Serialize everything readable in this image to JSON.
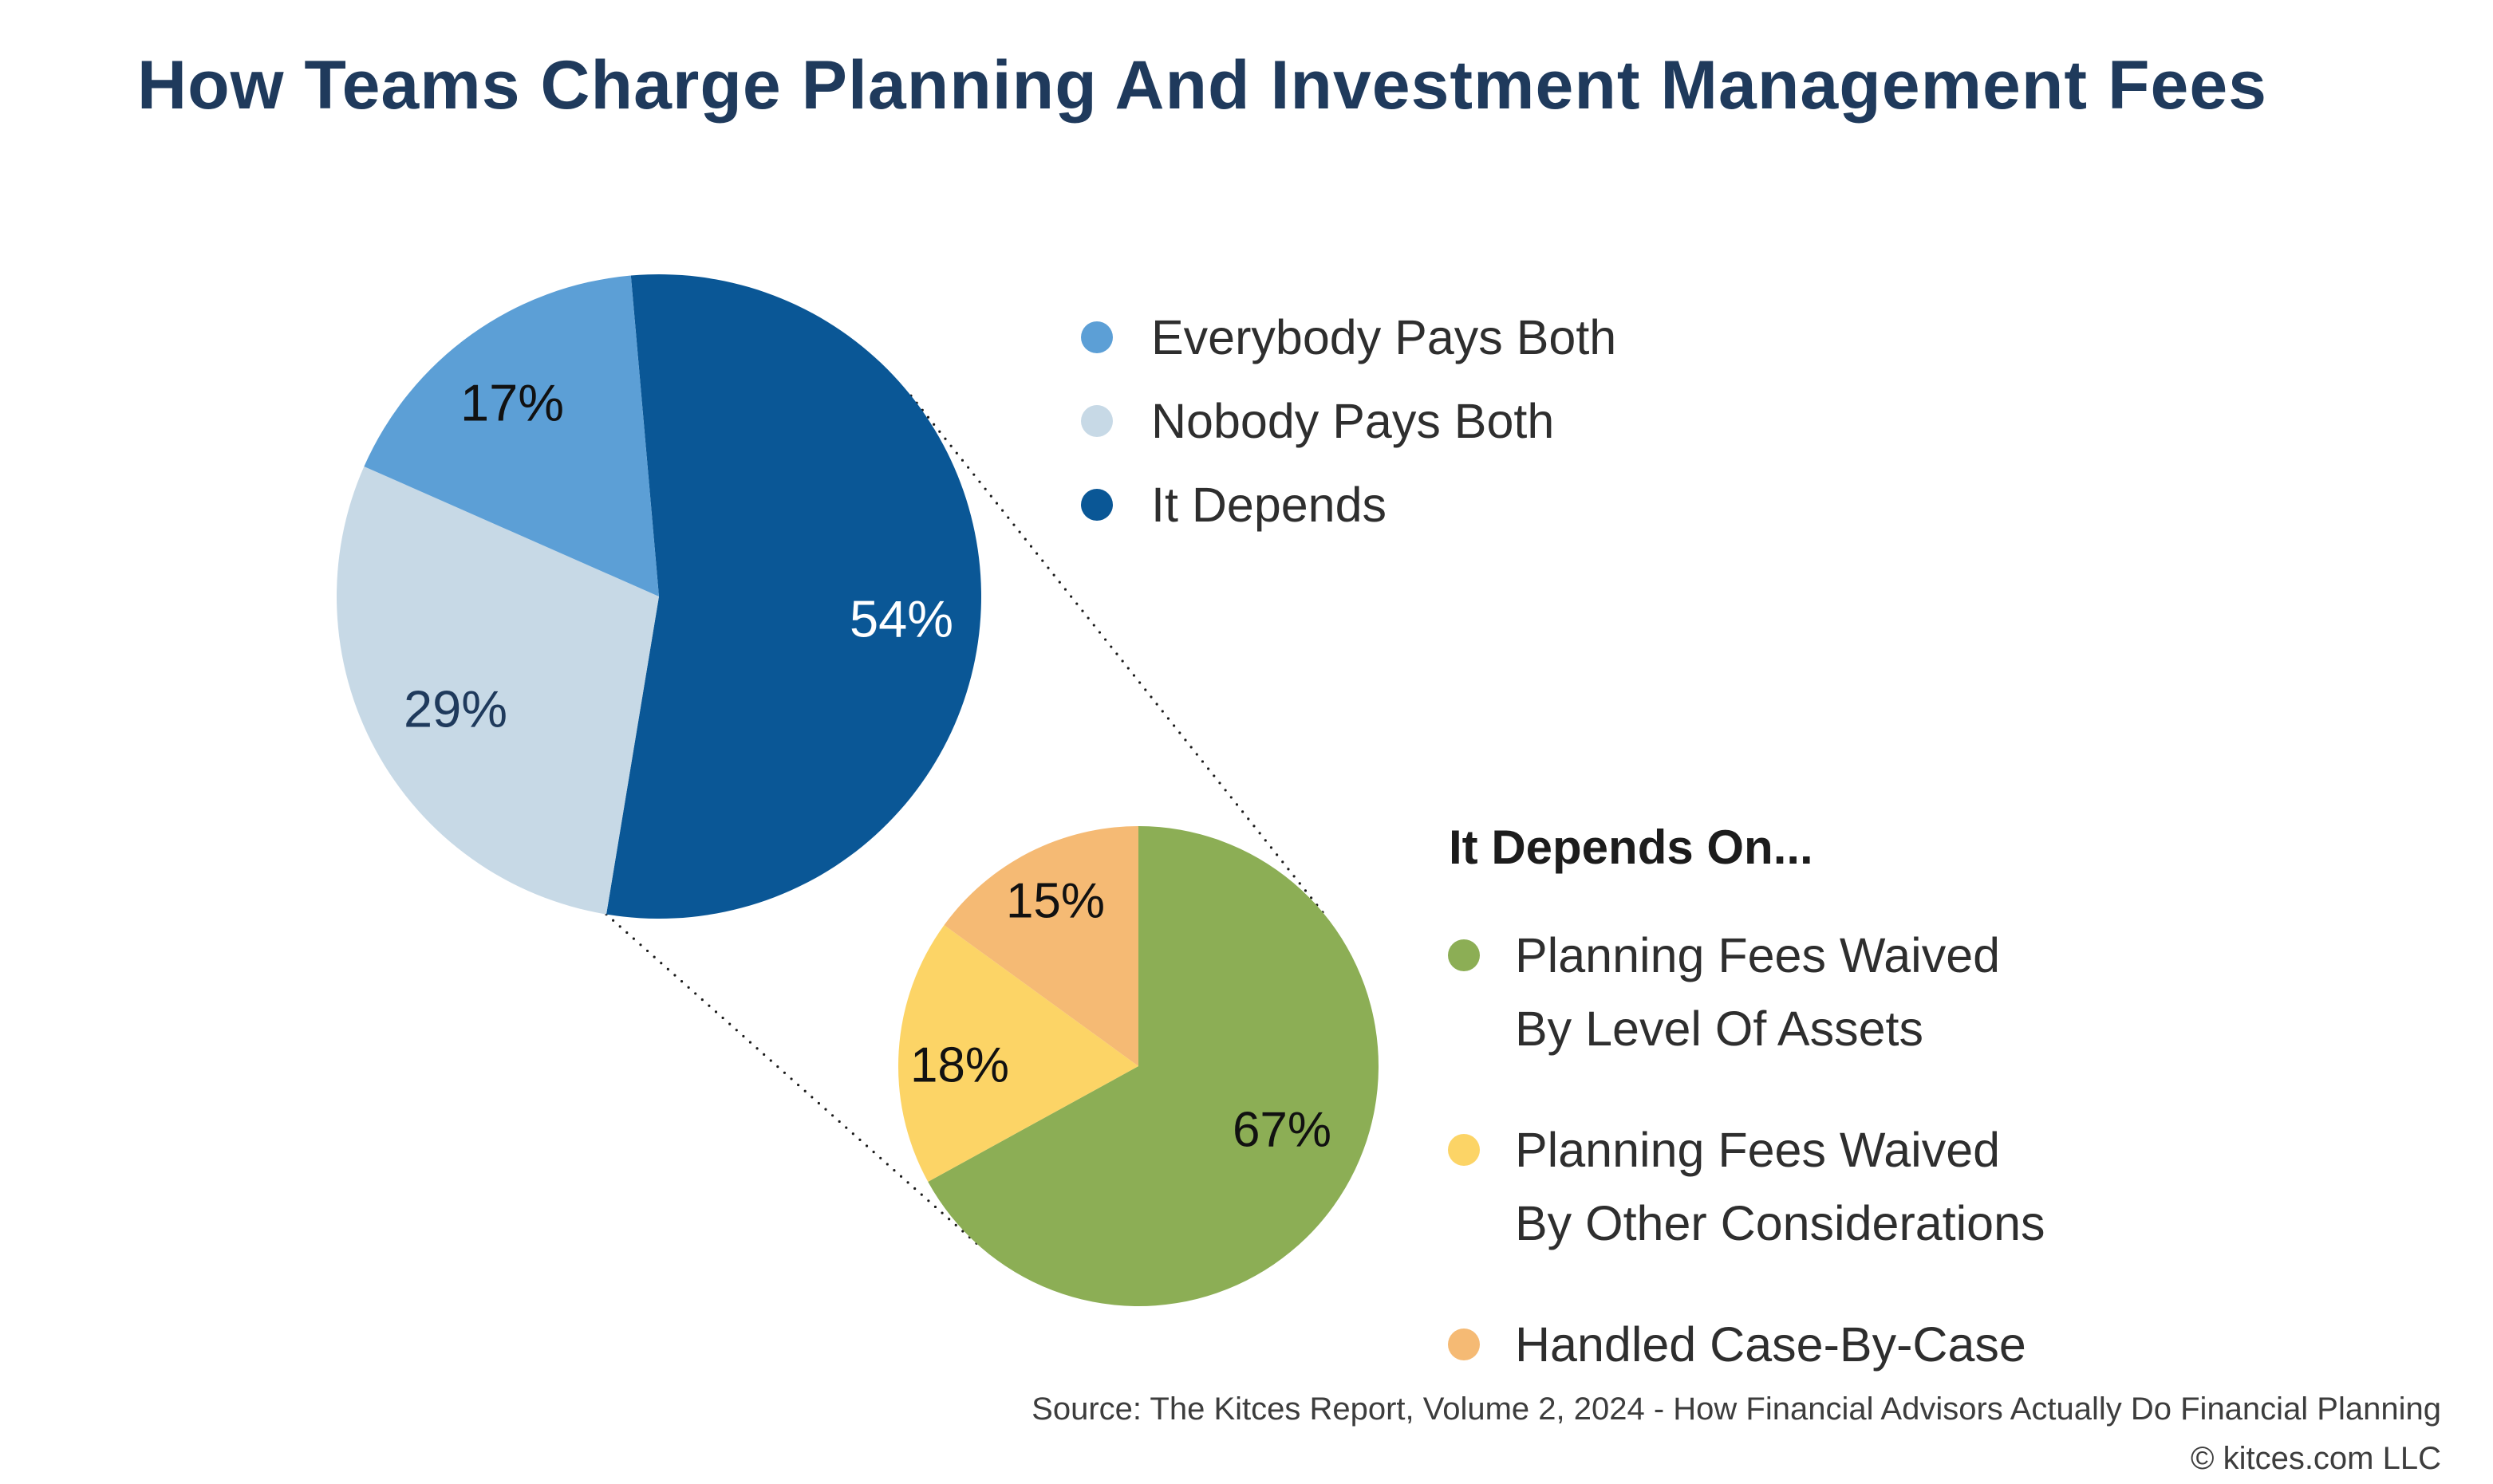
{
  "title": {
    "text": "How Teams Charge Planning And Investment Management Fees",
    "color": "#1F3A5C"
  },
  "chart_data": [
    {
      "type": "pie",
      "name": "fee-structure",
      "start_angle_deg": -5,
      "legend_position": "right",
      "legend": [
        {
          "label": "Everybody Pays Both",
          "color": "#5C9FD6",
          "value": 17
        },
        {
          "label": "Nobody Pays Both",
          "color": "#C7D9E6",
          "value": 29
        },
        {
          "label": "It Depends",
          "color": "#0A5796",
          "value": 54
        }
      ],
      "slices_clockwise": [
        {
          "name": "it-depends",
          "value": 54,
          "label_text": "54%",
          "color": "#0A5796",
          "label_color": "#FFFFFF"
        },
        {
          "name": "nobody-pays-both",
          "value": 29,
          "label_text": "29%",
          "color": "#C7D9E6",
          "label_color": "#1F3A5C"
        },
        {
          "name": "everybody-pays-both",
          "value": 17,
          "label_text": "17%",
          "color": "#5C9FD6",
          "label_color": "#111111"
        }
      ]
    },
    {
      "type": "pie",
      "name": "it-depends-detail",
      "title": "It Depends On...",
      "start_angle_deg": 0,
      "legend_position": "right",
      "legend": [
        {
          "lines": [
            "Planning Fees Waived",
            "By Level Of Assets"
          ],
          "color": "#8CAE55",
          "value": 67
        },
        {
          "lines": [
            "Planning Fees Waived",
            "By Other Considerations"
          ],
          "color": "#FCD466",
          "value": 18
        },
        {
          "lines": [
            "Handled Case-By-Case"
          ],
          "color": "#F5BA74",
          "value": 15
        }
      ],
      "slices_clockwise": [
        {
          "name": "planning-fees-waived-by-level-of-assets",
          "value": 67,
          "label_text": "67%",
          "color": "#8CAE55",
          "label_color": "#111111"
        },
        {
          "name": "planning-fees-waived-by-other-considerations",
          "value": 18,
          "label_text": "18%",
          "color": "#FCD466",
          "label_color": "#111111"
        },
        {
          "name": "handled-case-by-case",
          "value": 15,
          "label_text": "15%",
          "color": "#F5BA74",
          "label_color": "#111111"
        }
      ]
    }
  ],
  "connector_style": {
    "color": "#1A1A1A",
    "pattern": "dotted"
  },
  "footer": {
    "source_line": "Source: The Kitces Report, Volume 2, 2024 - How Financial Advisors Actually Do Financial Planning",
    "copyright_line": "© kitces.com LLC"
  }
}
